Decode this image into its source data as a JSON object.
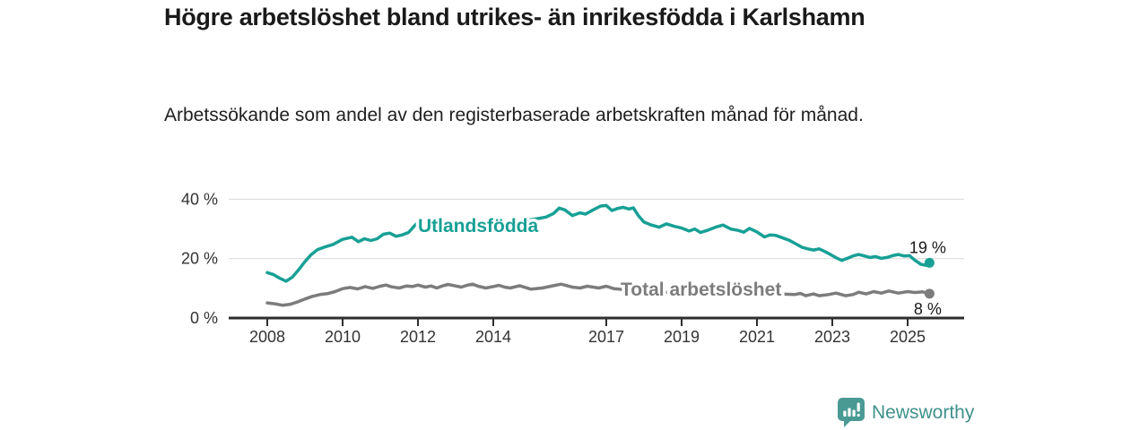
{
  "title": "Högre arbetslöshet bland utrikes- än inrikesfödda i Karlshamn",
  "subtitle": "Arbetssökande som andel av den registerbaserade arbetskraften månad för månad.",
  "branding": {
    "logo_text": "Newsworthy",
    "logo_icon": "bar-chart-speech-bubble-icon",
    "logo_icon_color": "#4a9a94",
    "logo_text_color": "#3e918b"
  },
  "colors": {
    "background": "#ffffff",
    "axis": "#2e2e2e",
    "grid": "#d9d9d9",
    "tick_text": "#333333",
    "title_text": "#1a1a1a"
  },
  "chart_data": {
    "type": "line",
    "x_axis": {
      "tick_labels": [
        "2008",
        "2010",
        "2012",
        "2014",
        "2017",
        "2019",
        "2021",
        "2023",
        "2025"
      ],
      "tick_values": [
        2008,
        2010,
        2012,
        2014,
        2017,
        2019,
        2021,
        2023,
        2025
      ],
      "range": [
        2008,
        2025.58
      ]
    },
    "y_axis": {
      "tick_labels": [
        "0 %",
        "20 %",
        "40 %"
      ],
      "tick_values": [
        0,
        20,
        40
      ],
      "unit": "%",
      "range": [
        0,
        42
      ]
    },
    "grid": "horizontal",
    "legend": "inline-labels",
    "series": [
      {
        "name": "Utlandsfödda",
        "color": "#18a095",
        "end_label": "19 %",
        "points": [
          [
            2008.0,
            15.3
          ],
          [
            2008.17,
            14.6
          ],
          [
            2008.33,
            13.4
          ],
          [
            2008.5,
            12.4
          ],
          [
            2008.67,
            13.8
          ],
          [
            2008.83,
            16.2
          ],
          [
            2009.0,
            19.0
          ],
          [
            2009.17,
            21.4
          ],
          [
            2009.33,
            23.0
          ],
          [
            2009.5,
            23.8
          ],
          [
            2009.75,
            24.8
          ],
          [
            2010.0,
            26.5
          ],
          [
            2010.25,
            27.2
          ],
          [
            2010.42,
            25.7
          ],
          [
            2010.58,
            26.7
          ],
          [
            2010.75,
            26.1
          ],
          [
            2010.92,
            26.7
          ],
          [
            2011.08,
            28.2
          ],
          [
            2011.25,
            28.6
          ],
          [
            2011.42,
            27.5
          ],
          [
            2011.58,
            28.0
          ],
          [
            2011.75,
            28.8
          ],
          [
            2011.92,
            31.2
          ],
          [
            2012.0,
            32.2
          ],
          [
            2012.3,
            31.0
          ],
          [
            2012.7,
            30.4
          ],
          [
            2013.1,
            30.8
          ],
          [
            2013.5,
            31.2
          ],
          [
            2013.9,
            31.6
          ],
          [
            2014.3,
            32.1
          ],
          [
            2014.7,
            32.7
          ],
          [
            2015.1,
            33.3
          ],
          [
            2015.4,
            34.0
          ],
          [
            2015.6,
            35.2
          ],
          [
            2015.75,
            37.0
          ],
          [
            2015.9,
            36.4
          ],
          [
            2016.1,
            34.5
          ],
          [
            2016.3,
            35.4
          ],
          [
            2016.45,
            35.0
          ],
          [
            2016.65,
            36.4
          ],
          [
            2016.85,
            37.7
          ],
          [
            2017.0,
            37.9
          ],
          [
            2017.15,
            36.2
          ],
          [
            2017.3,
            36.9
          ],
          [
            2017.45,
            37.3
          ],
          [
            2017.6,
            36.7
          ],
          [
            2017.72,
            37.1
          ],
          [
            2017.85,
            34.5
          ],
          [
            2018.0,
            32.3
          ],
          [
            2018.2,
            31.3
          ],
          [
            2018.4,
            30.6
          ],
          [
            2018.6,
            31.7
          ],
          [
            2018.8,
            30.9
          ],
          [
            2019.0,
            30.3
          ],
          [
            2019.2,
            29.3
          ],
          [
            2019.35,
            30.0
          ],
          [
            2019.5,
            28.8
          ],
          [
            2019.7,
            29.6
          ],
          [
            2019.9,
            30.6
          ],
          [
            2020.1,
            31.3
          ],
          [
            2020.3,
            30.0
          ],
          [
            2020.5,
            29.5
          ],
          [
            2020.65,
            28.9
          ],
          [
            2020.8,
            30.2
          ],
          [
            2021.0,
            29.0
          ],
          [
            2021.2,
            27.3
          ],
          [
            2021.35,
            28.0
          ],
          [
            2021.5,
            27.8
          ],
          [
            2021.7,
            26.9
          ],
          [
            2021.85,
            26.2
          ],
          [
            2022.0,
            25.2
          ],
          [
            2022.2,
            23.8
          ],
          [
            2022.35,
            23.3
          ],
          [
            2022.5,
            22.9
          ],
          [
            2022.65,
            23.3
          ],
          [
            2022.8,
            22.4
          ],
          [
            2022.95,
            21.4
          ],
          [
            2023.1,
            20.3
          ],
          [
            2023.25,
            19.4
          ],
          [
            2023.4,
            20.1
          ],
          [
            2023.55,
            20.9
          ],
          [
            2023.7,
            21.4
          ],
          [
            2023.85,
            20.9
          ],
          [
            2024.0,
            20.4
          ],
          [
            2024.15,
            20.7
          ],
          [
            2024.3,
            20.1
          ],
          [
            2024.45,
            20.4
          ],
          [
            2024.6,
            21.0
          ],
          [
            2024.75,
            21.4
          ],
          [
            2024.9,
            20.9
          ],
          [
            2025.05,
            21.0
          ],
          [
            2025.2,
            19.4
          ],
          [
            2025.35,
            18.1
          ],
          [
            2025.5,
            17.7
          ],
          [
            2025.58,
            18.6
          ]
        ]
      },
      {
        "name": "Total arbetslöshet",
        "color": "#7c7c7c",
        "end_label": "8 %",
        "points": [
          [
            2008.0,
            5.1
          ],
          [
            2008.2,
            4.8
          ],
          [
            2008.4,
            4.3
          ],
          [
            2008.6,
            4.6
          ],
          [
            2008.8,
            5.4
          ],
          [
            2009.0,
            6.4
          ],
          [
            2009.2,
            7.3
          ],
          [
            2009.4,
            7.9
          ],
          [
            2009.6,
            8.2
          ],
          [
            2009.8,
            8.9
          ],
          [
            2010.0,
            9.9
          ],
          [
            2010.2,
            10.3
          ],
          [
            2010.4,
            9.8
          ],
          [
            2010.6,
            10.6
          ],
          [
            2010.8,
            10.0
          ],
          [
            2011.0,
            10.7
          ],
          [
            2011.15,
            11.1
          ],
          [
            2011.3,
            10.5
          ],
          [
            2011.5,
            10.1
          ],
          [
            2011.7,
            10.8
          ],
          [
            2011.85,
            10.6
          ],
          [
            2012.0,
            11.1
          ],
          [
            2012.2,
            10.4
          ],
          [
            2012.35,
            10.8
          ],
          [
            2012.5,
            10.1
          ],
          [
            2012.65,
            10.8
          ],
          [
            2012.8,
            11.3
          ],
          [
            2013.0,
            10.8
          ],
          [
            2013.15,
            10.4
          ],
          [
            2013.3,
            11.0
          ],
          [
            2013.45,
            11.4
          ],
          [
            2013.6,
            10.7
          ],
          [
            2013.8,
            10.1
          ],
          [
            2014.0,
            10.6
          ],
          [
            2014.15,
            11.0
          ],
          [
            2014.3,
            10.4
          ],
          [
            2014.45,
            10.1
          ],
          [
            2014.7,
            10.9
          ],
          [
            2015.0,
            9.7
          ],
          [
            2015.3,
            10.1
          ],
          [
            2015.6,
            10.9
          ],
          [
            2015.8,
            11.4
          ],
          [
            2016.1,
            10.4
          ],
          [
            2016.3,
            10.1
          ],
          [
            2016.5,
            10.7
          ],
          [
            2016.8,
            10.1
          ],
          [
            2017.0,
            10.7
          ],
          [
            2017.2,
            9.9
          ],
          [
            2017.35,
            9.7
          ],
          [
            2017.7,
            9.3
          ],
          [
            2018.2,
            8.8
          ],
          [
            2018.7,
            8.6
          ],
          [
            2019.2,
            8.4
          ],
          [
            2019.7,
            8.6
          ],
          [
            2020.2,
            9.3
          ],
          [
            2020.7,
            9.0
          ],
          [
            2021.2,
            8.5
          ],
          [
            2021.6,
            8.1
          ],
          [
            2022.0,
            7.9
          ],
          [
            2022.15,
            8.3
          ],
          [
            2022.3,
            7.5
          ],
          [
            2022.5,
            8.1
          ],
          [
            2022.65,
            7.5
          ],
          [
            2022.9,
            7.9
          ],
          [
            2023.1,
            8.4
          ],
          [
            2023.35,
            7.5
          ],
          [
            2023.55,
            7.9
          ],
          [
            2023.7,
            8.7
          ],
          [
            2023.9,
            8.1
          ],
          [
            2024.1,
            8.9
          ],
          [
            2024.3,
            8.4
          ],
          [
            2024.5,
            9.1
          ],
          [
            2024.75,
            8.4
          ],
          [
            2025.0,
            8.9
          ],
          [
            2025.2,
            8.6
          ],
          [
            2025.4,
            8.8
          ],
          [
            2025.58,
            8.2
          ]
        ]
      }
    ]
  }
}
